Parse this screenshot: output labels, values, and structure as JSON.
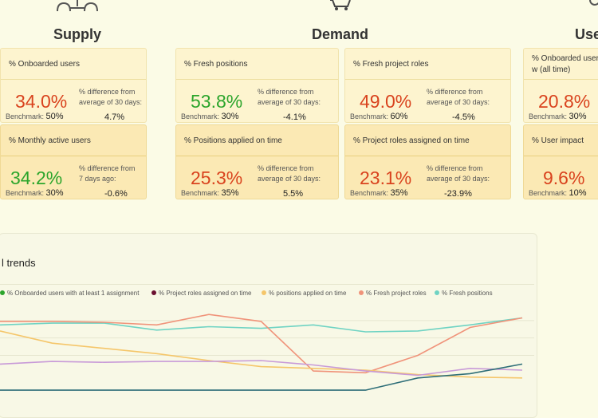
{
  "sections": {
    "supply": "Supply",
    "demand": "Demand",
    "users": "Use"
  },
  "icons": [
    "people-group-icon",
    "shopping-cart-icon",
    "gear-icon"
  ],
  "cards": [
    {
      "label": "% Onboarded users",
      "value": "34.0%",
      "color": "#d9431e",
      "benchmark": "50%",
      "diff_label": "% difference from average of 30 days:",
      "diff": "4.7%"
    },
    {
      "label": "% Fresh positions",
      "value": "53.8%",
      "color": "#2ca52c",
      "benchmark": "30%",
      "diff_label": "% difference from average of 30 days:",
      "diff": "-4.1%"
    },
    {
      "label": "% Fresh project roles",
      "value": "49.0%",
      "color": "#d9431e",
      "benchmark": "60%",
      "diff_label": "% difference from average of 30 days:",
      "diff": "-4.5%"
    },
    {
      "label": "% Onboarded users w (all time)",
      "value": "20.8%",
      "color": "#d9431e",
      "benchmark": "30%",
      "diff_label": "",
      "diff": ""
    },
    {
      "label": "% Monthly active users",
      "value": "34.2%",
      "color": "#2ca52c",
      "benchmark": "30%",
      "diff_label": "% difference from 7 days ago:",
      "diff": "-0.6%"
    },
    {
      "label": "% Positions applied on time",
      "value": "25.3%",
      "color": "#d9431e",
      "benchmark": "35%",
      "diff_label": "% difference from average of 30 days:",
      "diff": "5.5%"
    },
    {
      "label": "% Project roles assigned on time",
      "value": "23.1%",
      "color": "#d9431e",
      "benchmark": "35%",
      "diff_label": "% difference from average of 30 days:",
      "diff": "-23.9%"
    },
    {
      "label": "% User impact",
      "value": "9.6%",
      "color": "#d9431e",
      "benchmark": "10%",
      "diff_label": "",
      "diff": ""
    }
  ],
  "benchmark_label": "Benchmark:",
  "trends": {
    "title": "l trends",
    "legend": [
      {
        "name": "% Onboarded users with at least 1 assignment",
        "color": "#2ca52c"
      },
      {
        "name": "% Project roles assigned on time",
        "color": "#6b1030"
      },
      {
        "name": "% positions applied on time",
        "color": "#f5c66a"
      },
      {
        "name": "% Fresh project roles",
        "color": "#f0937a"
      },
      {
        "name": "% Fresh positions",
        "color": "#6fd3c3"
      }
    ]
  },
  "chart_data": {
    "type": "line",
    "title": "",
    "series": [
      {
        "name": "% Fresh positions",
        "color": "#6fd3c3",
        "values": [
          55,
          57,
          57,
          49,
          53,
          51,
          55,
          47,
          48,
          55,
          63
        ]
      },
      {
        "name": "% Fresh project roles",
        "color": "#f0937a",
        "values": [
          59,
          59,
          58,
          55,
          67,
          59,
          2,
          0,
          20,
          52,
          63
        ]
      },
      {
        "name": "% positions applied on time",
        "color": "#f5c66a",
        "values": [
          48,
          34,
          28,
          22,
          14,
          7,
          5,
          3,
          -2,
          -5,
          -6
        ]
      },
      {
        "name": "% Project roles assigned on time",
        "color": "#c89ad8",
        "values": [
          10,
          13,
          12,
          13,
          13,
          14,
          9,
          2,
          -3,
          5,
          3
        ]
      },
      {
        "name": "% Onboarded users with at least 1 assignment",
        "color": "#2e6e78",
        "values": [
          -20,
          -20,
          -20,
          -20,
          -20,
          -20,
          -20,
          -20,
          -6,
          -1,
          10
        ]
      }
    ]
  }
}
